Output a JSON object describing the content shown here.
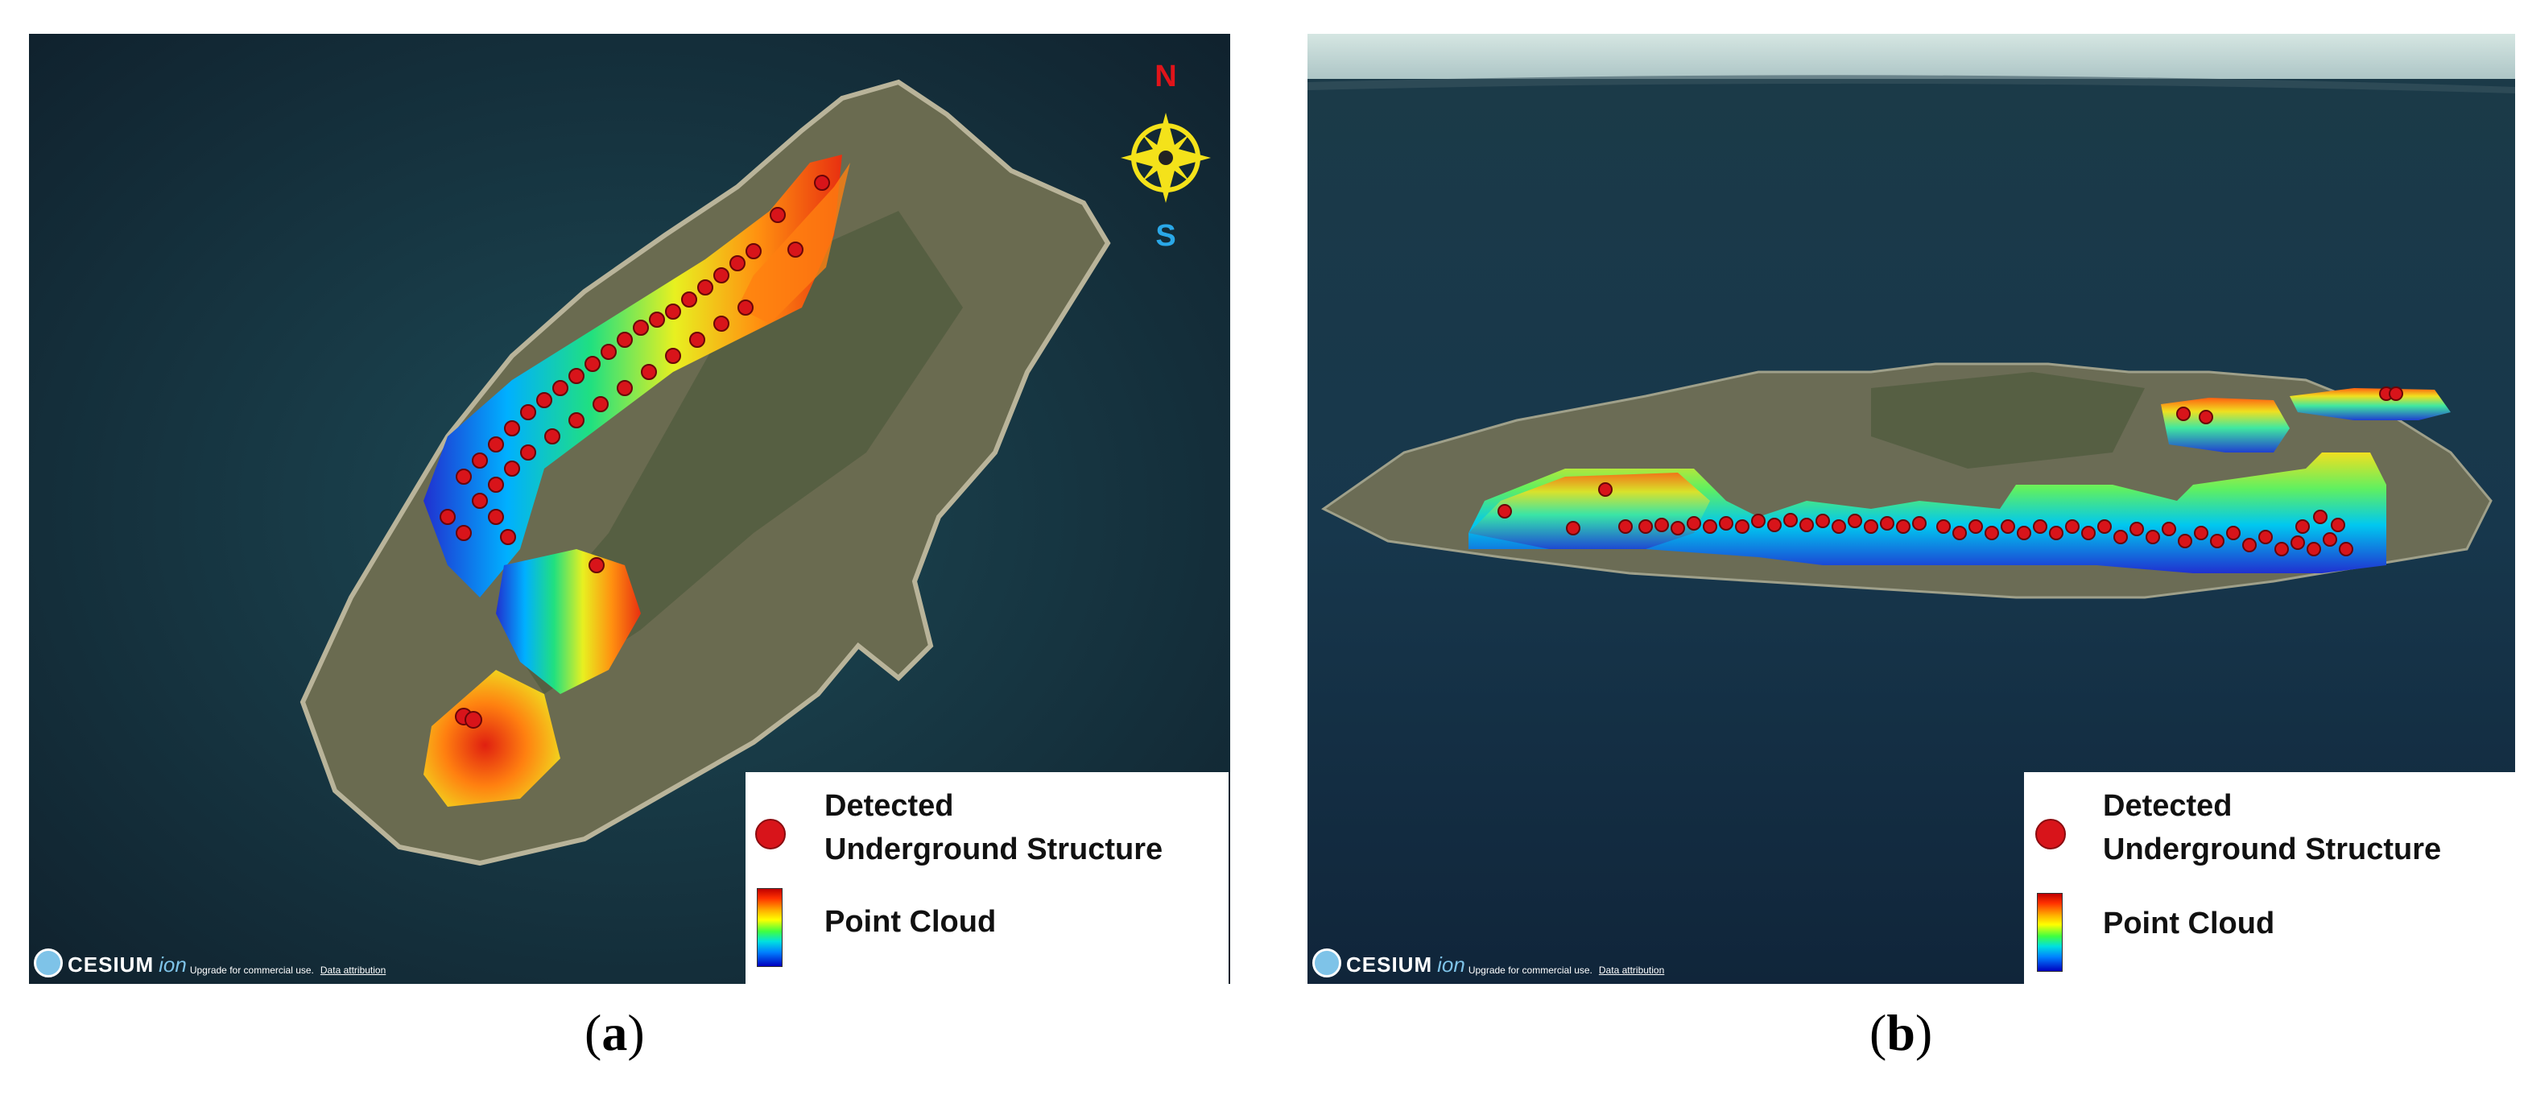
{
  "panels": [
    {
      "id": "a",
      "caption_open": "(",
      "caption_letter": "a",
      "caption_close": ")",
      "legend": {
        "marker_label_line1": "Detected",
        "marker_label_line2": "Underground Structure",
        "colorbar_label": "Point Cloud"
      },
      "compass": {
        "north": "N",
        "south": "S"
      },
      "attribution": {
        "brand": "CESIUM",
        "product": "ion",
        "note": "Upgrade for commercial use.",
        "link": "Data attribution"
      }
    },
    {
      "id": "b",
      "caption_open": "(",
      "caption_letter": "b",
      "caption_close": ")",
      "legend": {
        "marker_label_line1": "Detected",
        "marker_label_line2": "Underground Structure",
        "colorbar_label": "Point Cloud"
      },
      "attribution": {
        "brand": "CESIUM",
        "product": "ion",
        "note": "Upgrade for commercial use.",
        "link": "Data attribution"
      }
    }
  ],
  "colors": {
    "marker": "#d8141a",
    "sea": "#16303f",
    "sky": "#c9dcdc",
    "land": "#6b6a52",
    "compass": "#f4e21a"
  }
}
